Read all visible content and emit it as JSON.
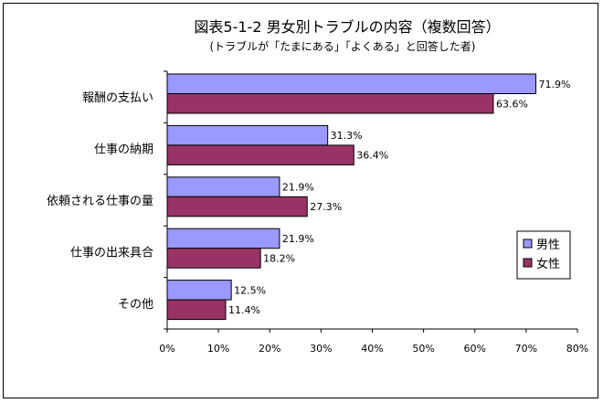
{
  "chart_data": {
    "type": "bar",
    "orientation": "horizontal",
    "title": "図表5-1-2  男女別トラブルの内容（複数回答）",
    "subtitle": "(トラブルが「たまにある」「よくある」と回答した者)",
    "categories": [
      "報酬の支払い",
      "仕事の納期",
      "依頼される仕事の量",
      "仕事の出来具合",
      "その他"
    ],
    "series": [
      {
        "name": "男性",
        "color": "#9999ff",
        "values": [
          71.9,
          31.3,
          21.9,
          21.9,
          12.5
        ]
      },
      {
        "name": "女性",
        "color": "#993366",
        "values": [
          63.6,
          36.4,
          27.3,
          18.2,
          11.4
        ]
      }
    ],
    "xlim": [
      0,
      80
    ],
    "xticks": [
      0,
      10,
      20,
      30,
      40,
      50,
      60,
      70,
      80
    ],
    "value_suffix": "%",
    "legend_position": "right",
    "grid": false
  }
}
